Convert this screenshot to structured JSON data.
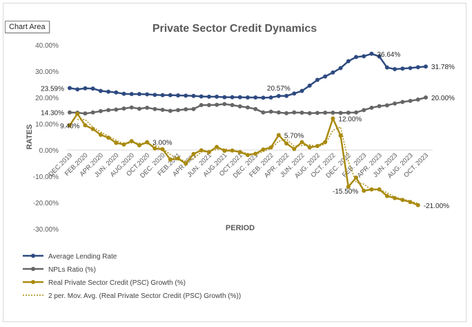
{
  "tooltip_label": "Chart Area",
  "chart_data": {
    "type": "line",
    "title": "Private Sector Credit Dynamics",
    "xlabel": "PERIOD",
    "ylabel": "RATES",
    "ylim": [
      -30,
      40
    ],
    "yticks": [
      "-30.00%",
      "-20.00%",
      "-10.00%",
      "0.00%",
      "10.00%",
      "20.00%",
      "30.00%",
      "40.00%"
    ],
    "yticks_values": [
      -30,
      -20,
      -10,
      0,
      10,
      20,
      30,
      40
    ],
    "xticks": [
      "DEC.2019",
      "FEB.2020",
      "APR.2020",
      "JUN. 2020",
      "AUG.2020",
      "OCT.2020",
      "DEC. 2020",
      "FEB.2021",
      "APR.2021",
      "JUN. 2021",
      "AUG.2021",
      "OCT.2021",
      "DEC. 2021",
      "FEB. 2022",
      "APR. 2022",
      "JUN. 2022",
      "AUG. 2022",
      "OCT. 2022",
      "DEC. 2022",
      "FEB. 2023",
      "APR. 2023",
      "JUN. 2023",
      "AUG. 2023",
      "OCT. 2023"
    ],
    "grid": false,
    "legend_position": "bottom",
    "colors": {
      "lending": "#2e4a80",
      "npl": "#666666",
      "psc": "#a98a0f",
      "movavg": "#a98a0f"
    },
    "series": [
      {
        "name": "Average Lending Rate",
        "values": [
          23.59,
          23.1,
          23.5,
          23.4,
          22.5,
          22.2,
          21.9,
          21.4,
          21.3,
          21.3,
          21.2,
          21.0,
          20.9,
          20.9,
          20.8,
          20.7,
          20.6,
          20.4,
          20.3,
          20.3,
          20.1,
          20.1,
          20.1,
          20.0,
          20.0,
          19.9,
          20.0,
          20.57,
          20.6,
          21.5,
          22.5,
          24.5,
          26.7,
          28.0,
          29.5,
          31.2,
          33.8,
          35.4,
          35.7,
          36.64,
          35.6,
          31.4,
          30.8,
          31.0,
          31.2,
          31.5,
          31.78
        ]
      },
      {
        "name": "NPLs Ratio (%)",
        "values": [
          14.3,
          14.2,
          13.9,
          14.3,
          14.8,
          15.2,
          15.4,
          15.8,
          16.2,
          15.7,
          16.1,
          15.6,
          15.3,
          14.9,
          15.2,
          15.5,
          15.6,
          17.1,
          17.1,
          17.2,
          17.5,
          17.1,
          16.6,
          16.2,
          15.6,
          14.3,
          14.6,
          14.3,
          14.0,
          14.3,
          14.2,
          14.0,
          14.1,
          14.2,
          14.2,
          14.1,
          14.2,
          14.3,
          15.2,
          16.1,
          16.7,
          17.0,
          17.7,
          18.3,
          18.7,
          19.2,
          20.0
        ]
      },
      {
        "name": "Real Private Sector Credit (PSC) Growth (%)",
        "values": [
          9.4,
          13.8,
          9.4,
          8.0,
          5.8,
          4.7,
          2.7,
          2.1,
          3.4,
          1.8,
          3.0,
          0.6,
          0.3,
          -3.6,
          -3.2,
          -5.2,
          -1.5,
          -0.1,
          -0.8,
          1.2,
          -0.3,
          -0.2,
          -0.8,
          -1.9,
          -1.4,
          0.2,
          1.0,
          5.7,
          2.5,
          0.4,
          3.0,
          1.0,
          1.5,
          3.0,
          12.0,
          5.5,
          -14.0,
          -10.5,
          -15.5,
          -15.0,
          -15.0,
          -17.5,
          -18.3,
          -19.0,
          -19.8,
          -21.0
        ]
      },
      {
        "name": "2 per. Mov. Avg. (Real Private Sector Credit (PSC) Growth (%))",
        "values": [
          null,
          11.6,
          11.6,
          8.7,
          6.9,
          5.25,
          3.7,
          2.4,
          2.75,
          2.6,
          2.4,
          1.8,
          0.45,
          -1.65,
          -3.4,
          -4.2,
          -3.35,
          -0.8,
          -0.45,
          0.2,
          0.45,
          -0.25,
          -0.5,
          -1.35,
          -1.65,
          -0.6,
          0.6,
          3.35,
          4.1,
          1.45,
          1.7,
          2.0,
          1.25,
          2.25,
          7.5,
          8.75,
          -4.25,
          -12.25,
          -13.0,
          -15.25,
          -15.0,
          -16.25,
          -17.9,
          -18.65,
          -19.4,
          -20.4
        ]
      }
    ],
    "annotations": [
      {
        "series": 0,
        "index": 0,
        "text": "23.59%",
        "pos": "left"
      },
      {
        "series": 0,
        "index": 27,
        "text": "20.57%",
        "pos": "above"
      },
      {
        "series": 0,
        "index": 39,
        "text": "36.64%",
        "pos": "right"
      },
      {
        "series": 0,
        "index": 46,
        "text": "31.78%",
        "pos": "right"
      },
      {
        "series": 1,
        "index": 0,
        "text": "14.30%",
        "pos": "left"
      },
      {
        "series": 1,
        "index": 46,
        "text": "20.00%",
        "pos": "right"
      },
      {
        "series": 2,
        "index": 2,
        "text": "9.40%",
        "pos": "left"
      },
      {
        "series": 2,
        "index": 10,
        "text": "3.00%",
        "pos": "right"
      },
      {
        "series": 2,
        "index": 27,
        "text": "5.70%",
        "pos": "right"
      },
      {
        "series": 2,
        "index": 34,
        "text": "12.00%",
        "pos": "right"
      },
      {
        "series": 2,
        "index": 38,
        "text": "-15.50%",
        "pos": "left"
      },
      {
        "series": 2,
        "index": 45,
        "text": "-21.00%",
        "pos": "right"
      }
    ]
  }
}
